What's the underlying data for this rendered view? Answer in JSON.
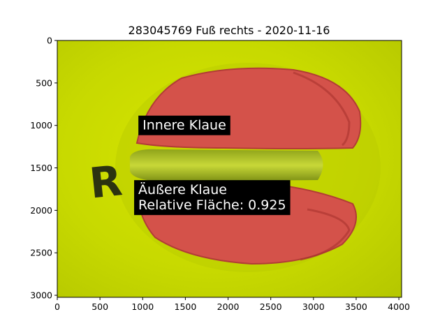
{
  "chart_data": {
    "type": "image",
    "title": "283045769 Fuß rechts - 2020-11-16",
    "xlim": [
      0,
      4032
    ],
    "ylim": [
      3024,
      0
    ],
    "x_ticks": [
      0,
      500,
      1000,
      1500,
      2000,
      2500,
      3000,
      3500,
      4000
    ],
    "y_ticks": [
      0,
      500,
      1000,
      1500,
      2000,
      2500,
      3000
    ],
    "grid": false,
    "annotations": [
      {
        "lines": [
          "Innere Klaue"
        ],
        "x": 950,
        "y": 1000
      },
      {
        "lines": [
          "Äußere Klaue",
          "Relative Fläche: 0.925"
        ],
        "x": 900,
        "y": 1850
      }
    ],
    "image_mark": "R"
  },
  "colors": {
    "background": "#c4d600",
    "claw": "#d4524a",
    "annotation_box": "#000000",
    "annotation_text": "#ffffff"
  }
}
